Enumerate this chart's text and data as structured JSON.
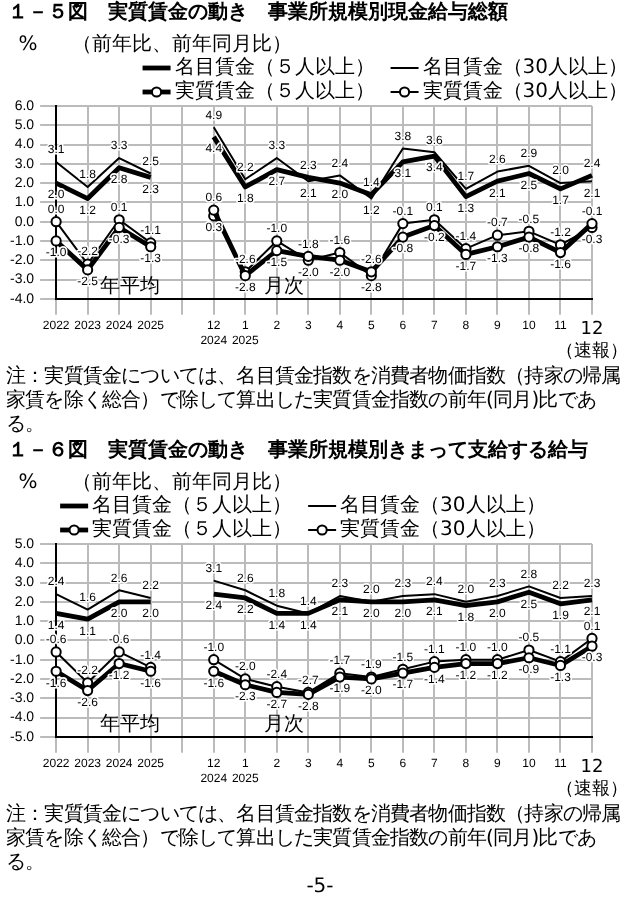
{
  "chart_data": [
    {
      "type": "line",
      "title": "１－５図　実質賃金の動き　事業所規模別現金給与総額",
      "subtitle": "（前年比、前年同月比）",
      "ylabel": "%",
      "categories": [
        "2022",
        "2023",
        "2024",
        "2025",
        null,
        "12\n2024",
        "1\n2025",
        "2",
        "3",
        "4",
        "5",
        "6",
        "7",
        "8",
        "9",
        "10",
        "11",
        "12（速報）"
      ],
      "series": [
        {
          "name": "名目賃金（５人以上）",
          "color": "#000000",
          "marker": "none",
          "values": [
            2.0,
            1.2,
            2.8,
            2.3,
            null,
            4.4,
            1.8,
            2.7,
            2.3,
            2.0,
            1.4,
            3.1,
            3.4,
            1.3,
            2.1,
            2.5,
            1.7,
            2.4
          ],
          "value_labels": [
            "2.0",
            "1.2",
            "2.8",
            "2.3",
            null,
            "4.4",
            "1.8",
            "2.7",
            "2.3",
            "2.0",
            "1.4",
            "3.1",
            "3.4",
            "1.3",
            "2.1",
            "2.5",
            "1.7",
            "2.4"
          ]
        },
        {
          "name": "実質賃金（５人以上）",
          "color": "#000000",
          "marker": "circle",
          "values": [
            -1.0,
            -2.5,
            -0.3,
            -1.3,
            null,
            0.6,
            -2.8,
            -1.5,
            -1.8,
            -2.0,
            -2.6,
            -0.8,
            -0.2,
            -1.7,
            -1.3,
            -0.8,
            -1.6,
            -0.1
          ],
          "value_labels": [
            "-1.0",
            "-2.5",
            "-0.3",
            "-1.3",
            null,
            "0.6",
            "-2.8",
            "-1.5",
            "-1.8",
            "-2.0",
            "-2.6",
            "-0.8",
            "-0.2",
            "-1.7",
            "-1.3",
            "-0.8",
            "-1.6",
            "-0.1"
          ]
        },
        {
          "name": "名目賃金（30人以上）",
          "color": "#000000",
          "marker": "none",
          "values": [
            3.1,
            1.8,
            3.3,
            2.5,
            null,
            4.9,
            2.2,
            3.3,
            2.1,
            2.4,
            1.2,
            3.8,
            3.6,
            1.7,
            2.6,
            2.9,
            2.0,
            2.1
          ],
          "value_labels": [
            "3.1",
            "1.8",
            "3.3",
            "2.5",
            null,
            "4.9",
            "2.2",
            "3.3",
            "2.1",
            "2.4",
            "1.2",
            "3.8",
            "3.6",
            "1.7",
            "2.6",
            "2.9",
            "2.0",
            "2.1"
          ]
        },
        {
          "name": "実質賃金（30人以上）",
          "color": "#000000",
          "marker": "circle",
          "values": [
            0.0,
            -2.2,
            0.1,
            -1.1,
            null,
            0.3,
            -2.6,
            -1.0,
            -2.0,
            -1.6,
            -2.8,
            -0.1,
            0.1,
            -1.4,
            -0.7,
            -0.5,
            -1.2,
            -0.3
          ],
          "value_labels": [
            "0.0",
            "-2.2",
            "0.1",
            "-1.1",
            null,
            "0.3",
            "-2.6",
            "-1.0",
            "-2.0",
            "-1.6",
            "-2.8",
            "-0.1",
            "0.1",
            "-1.4",
            "-0.7",
            "-0.5",
            "-1.2",
            "-0.3"
          ]
        }
      ],
      "ylim": [
        -4,
        6
      ],
      "yticks": [
        {
          "value": -4,
          "label": "-4.0"
        },
        {
          "value": -3,
          "label": "-3.0"
        },
        {
          "value": -2,
          "label": "-2.0"
        },
        {
          "value": -1,
          "label": "-1.0"
        },
        {
          "value": 0,
          "label": "0.0"
        },
        {
          "value": 1,
          "label": "1.0"
        },
        {
          "value": 2,
          "label": "2.0"
        },
        {
          "value": 3,
          "label": "3.0"
        },
        {
          "value": 4,
          "label": "4.0"
        },
        {
          "value": 5,
          "label": "5.0"
        },
        {
          "value": 6,
          "label": "6.0"
        }
      ],
      "grid": true,
      "legend": "top right",
      "annotations": [
        "年平均",
        "月次",
        "注：実質賃金については、名目賃金指数を消費者物価指数（持家の帰属家賃を除く総合）で除して算出した実質賃金指数の前年(同月)比である。"
      ]
    },
    {
      "type": "line",
      "title": "１－６図　実質賃金の動き　事業所規模別きまって支給する給与",
      "subtitle": "（前年比、前年同月比）",
      "ylabel": "%",
      "categories": [
        "2022",
        "2023",
        "2024",
        "2025",
        null,
        "12\n2024",
        "1\n2025",
        "2",
        "3",
        "4",
        "5",
        "6",
        "7",
        "8",
        "9",
        "10",
        "11",
        "12（速報）"
      ],
      "series": [
        {
          "name": "名目賃金（５人以上）",
          "color": "#000000",
          "marker": "none",
          "values": [
            1.4,
            1.1,
            2.0,
            2.0,
            null,
            2.4,
            2.2,
            1.4,
            1.4,
            2.1,
            2.0,
            2.0,
            2.1,
            1.8,
            2.0,
            2.5,
            1.9,
            2.1
          ],
          "value_labels": [
            "1.4",
            "1.1",
            "2.0",
            "2.0",
            null,
            "2.4",
            "2.2",
            "1.4",
            "1.4",
            "2.1",
            "2.0",
            "2.0",
            "2.1",
            "1.8",
            "2.0",
            "2.5",
            "1.9",
            "2.1"
          ]
        },
        {
          "name": "実質賃金（５人以上）",
          "color": "#000000",
          "marker": "circle",
          "values": [
            -1.6,
            -2.6,
            -1.2,
            -1.6,
            null,
            -1.6,
            -2.3,
            -2.7,
            -2.8,
            -1.9,
            -2.0,
            -1.7,
            -1.4,
            -1.2,
            -1.2,
            -0.9,
            -1.3,
            -0.3
          ],
          "value_labels": [
            "-1.6",
            "-2.6",
            "-1.2",
            "-1.6",
            null,
            "-1.6",
            "-2.3",
            "-2.7",
            "-2.8",
            "-1.9",
            "-2.0",
            "-1.7",
            "-1.4",
            "-1.2",
            "-1.2",
            "-0.9",
            "-1.3",
            "-0.3"
          ]
        },
        {
          "name": "名目賃金（30人以上）",
          "color": "#000000",
          "marker": "none",
          "values": [
            2.4,
            1.6,
            2.6,
            2.2,
            null,
            3.1,
            2.6,
            1.8,
            1.4,
            2.3,
            2.0,
            2.3,
            2.4,
            2.0,
            2.3,
            2.8,
            2.2,
            2.3
          ],
          "value_labels": [
            "2.4",
            "1.6",
            "2.6",
            "2.2",
            null,
            "3.1",
            "2.6",
            "1.8",
            "1.4",
            "2.3",
            "2.0",
            "2.3",
            "2.4",
            "2.0",
            "2.3",
            "2.8",
            "2.2",
            "2.3"
          ]
        },
        {
          "name": "実質賃金（30人以上）",
          "color": "#000000",
          "marker": "circle",
          "values": [
            -0.6,
            -2.2,
            -0.6,
            -1.4,
            null,
            -1.0,
            -2.0,
            -2.4,
            -2.7,
            -1.7,
            -1.9,
            -1.5,
            -1.1,
            -1.0,
            -1.0,
            -0.5,
            -1.1,
            0.1
          ],
          "value_labels": [
            "-0.6",
            "-2.2",
            "-0.6",
            "-1.4",
            null,
            "-1.0",
            "-2.0",
            "-2.4",
            "-2.7",
            "-1.7",
            "-1.9",
            "-1.5",
            "-1.1",
            "-1.0",
            "-1.0",
            "-0.5",
            "-1.1",
            "0.1"
          ]
        }
      ],
      "ylim": [
        -5,
        5
      ],
      "yticks": [
        {
          "value": -5,
          "label": "-5.0"
        },
        {
          "value": -4,
          "label": "-4.0"
        },
        {
          "value": -3,
          "label": "-3.0"
        },
        {
          "value": -2,
          "label": "-2.0"
        },
        {
          "value": -1,
          "label": "-1.0"
        },
        {
          "value": 0,
          "label": "0.0"
        },
        {
          "value": 1,
          "label": "1.0"
        },
        {
          "value": 2,
          "label": "2.0"
        },
        {
          "value": 3,
          "label": "3.0"
        },
        {
          "value": 4,
          "label": "4.0"
        },
        {
          "value": 5,
          "label": "5.0"
        }
      ],
      "grid": true,
      "legend": "top left",
      "annotations": [
        "年平均",
        "月次",
        "注：実質賃金については、名目賃金指数を消費者物価指数（持家の帰属家賃を除く総合）で除して算出した実質賃金指数の前年(同月)比である。",
        "-5-"
      ]
    }
  ]
}
